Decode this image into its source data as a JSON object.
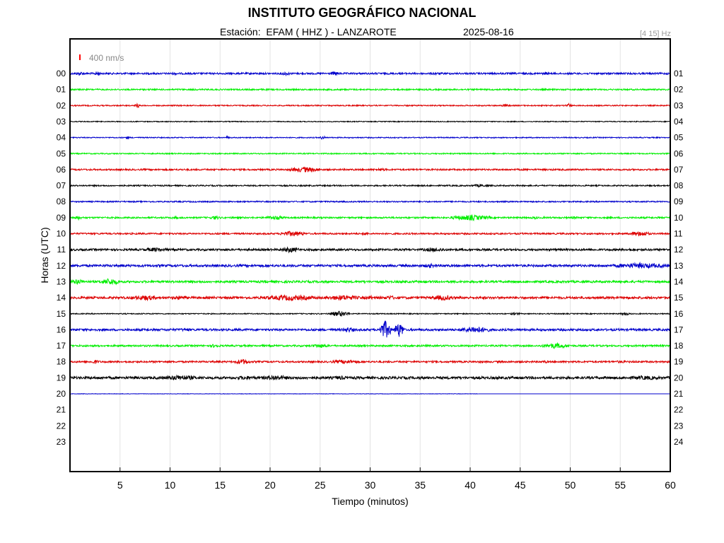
{
  "header": {
    "title": "INSTITUTO GEOGRÁFICO NACIONAL",
    "station": "Estación:  EFAM ( HHZ ) - LANZAROTE",
    "date": "2025-08-16",
    "filter": "[4 15] Hz"
  },
  "chart_data": {
    "type": "line",
    "xlabel": "Tiempo (minutos)",
    "ylabel": "Horas (UTC)",
    "xlim": [
      0,
      60
    ],
    "x_ticks": [
      5,
      10,
      15,
      20,
      25,
      30,
      35,
      40,
      45,
      50,
      55,
      60
    ],
    "left_hour_labels": [
      "00",
      "01",
      "02",
      "03",
      "04",
      "05",
      "06",
      "07",
      "08",
      "09",
      "10",
      "11",
      "12",
      "13",
      "14",
      "15",
      "16",
      "17",
      "18",
      "19",
      "20",
      "21",
      "22",
      "23"
    ],
    "right_hour_labels": [
      "01",
      "02",
      "03",
      "04",
      "05",
      "06",
      "07",
      "08",
      "09",
      "10",
      "11",
      "12",
      "13",
      "14",
      "15",
      "16",
      "17",
      "18",
      "19",
      "20",
      "21",
      "22",
      "23",
      "24"
    ],
    "scale_label": "400 nm/s",
    "scale_color": "#ff0000",
    "grid": true,
    "traces": [
      {
        "hour": 0,
        "color": "#0000cc",
        "noise": 1.2,
        "bursts": [
          [
            0.5,
            1.5,
            3
          ],
          [
            2.5,
            3.0,
            4
          ],
          [
            10,
            11,
            2
          ],
          [
            21,
            22,
            3
          ],
          [
            26,
            27,
            3
          ],
          [
            36,
            37,
            2
          ],
          [
            47,
            48,
            2
          ]
        ]
      },
      {
        "hour": 1,
        "color": "#00ee00",
        "noise": 1.0,
        "bursts": []
      },
      {
        "hour": 2,
        "color": "#dd0000",
        "noise": 0.8,
        "bursts": [
          [
            6.5,
            7.0,
            3
          ],
          [
            43,
            44,
            2
          ],
          [
            49.5,
            50.2,
            3
          ]
        ]
      },
      {
        "hour": 3,
        "color": "#000000",
        "noise": 0.6,
        "bursts": []
      },
      {
        "hour": 4,
        "color": "#0000cc",
        "noise": 0.7,
        "bursts": [
          [
            5.5,
            6.0,
            2
          ],
          [
            15.5,
            16.0,
            2
          ],
          [
            25,
            25.5,
            3
          ]
        ]
      },
      {
        "hour": 5,
        "color": "#00ee00",
        "noise": 0.8,
        "bursts": []
      },
      {
        "hour": 6,
        "color": "#dd0000",
        "noise": 1.1,
        "bursts": [
          [
            22,
            25,
            4
          ],
          [
            30,
            32,
            2
          ]
        ]
      },
      {
        "hour": 7,
        "color": "#000000",
        "noise": 0.9,
        "bursts": [
          [
            40,
            42,
            2
          ]
        ]
      },
      {
        "hour": 8,
        "color": "#0000cc",
        "noise": 0.9,
        "bursts": []
      },
      {
        "hour": 9,
        "color": "#00ee00",
        "noise": 1.1,
        "bursts": [
          [
            0.3,
            1.2,
            3
          ],
          [
            10,
            11,
            2
          ],
          [
            14,
            15,
            3
          ],
          [
            19.5,
            21.5,
            3
          ],
          [
            38,
            42,
            4
          ],
          [
            46,
            47,
            2
          ],
          [
            50,
            51,
            2
          ]
        ]
      },
      {
        "hour": 10,
        "color": "#dd0000",
        "noise": 1.1,
        "bursts": [
          [
            21,
            23.5,
            4
          ],
          [
            29,
            30,
            2
          ],
          [
            56,
            58,
            4
          ]
        ]
      },
      {
        "hour": 11,
        "color": "#000000",
        "noise": 1.4,
        "bursts": [
          [
            7,
            10,
            3
          ],
          [
            21,
            23,
            4
          ],
          [
            35,
            38,
            3
          ],
          [
            55,
            57,
            2
          ]
        ]
      },
      {
        "hour": 12,
        "color": "#0000cc",
        "noise": 1.6,
        "bursts": [
          [
            5,
            6,
            2
          ],
          [
            35,
            37,
            3
          ],
          [
            54,
            60,
            4
          ]
        ]
      },
      {
        "hour": 13,
        "color": "#00ee00",
        "noise": 1.5,
        "bursts": [
          [
            0,
            1.5,
            4
          ],
          [
            3,
            5,
            5
          ],
          [
            29,
            30,
            2
          ],
          [
            33,
            34,
            2
          ],
          [
            35,
            36,
            2
          ]
        ]
      },
      {
        "hour": 14,
        "color": "#dd0000",
        "noise": 1.6,
        "bursts": [
          [
            6,
            9,
            4
          ],
          [
            10,
            12,
            3
          ],
          [
            19,
            25,
            4
          ],
          [
            25.5,
            29,
            4
          ],
          [
            29,
            31,
            3
          ],
          [
            31,
            33,
            3
          ],
          [
            36,
            38.5,
            4
          ],
          [
            41,
            42,
            2
          ]
        ]
      },
      {
        "hour": 15,
        "color": "#000000",
        "noise": 0.7,
        "bursts": [
          [
            26,
            28,
            4
          ],
          [
            44,
            45,
            2
          ],
          [
            55,
            56,
            2
          ]
        ]
      },
      {
        "hour": 16,
        "color": "#0000cc",
        "noise": 1.5,
        "bursts": [
          [
            10,
            13,
            2
          ],
          [
            27,
            28.5,
            4
          ],
          [
            30.9,
            32.1,
            13
          ],
          [
            32.4,
            33.4,
            11
          ],
          [
            37,
            38,
            2
          ],
          [
            39,
            42,
            5
          ]
        ]
      },
      {
        "hour": 17,
        "color": "#00ee00",
        "noise": 1.2,
        "bursts": [
          [
            14,
            15,
            3
          ],
          [
            24,
            26,
            3
          ],
          [
            47,
            50,
            4
          ]
        ]
      },
      {
        "hour": 18,
        "color": "#dd0000",
        "noise": 1.2,
        "bursts": [
          [
            2,
            3,
            3
          ],
          [
            16.5,
            18,
            4
          ],
          [
            26,
            29,
            3
          ],
          [
            47,
            48,
            2
          ],
          [
            54,
            56,
            2
          ]
        ]
      },
      {
        "hour": 19,
        "color": "#000000",
        "noise": 1.8,
        "bursts": [
          [
            9,
            13,
            4
          ],
          [
            16,
            19,
            3
          ],
          [
            19,
            22,
            4
          ],
          [
            26,
            28,
            3
          ],
          [
            55,
            60,
            3
          ]
        ]
      },
      {
        "hour": 20,
        "color": "#0000cc",
        "noise": 0.3,
        "bursts": [],
        "end_minute": 40.8
      }
    ]
  }
}
